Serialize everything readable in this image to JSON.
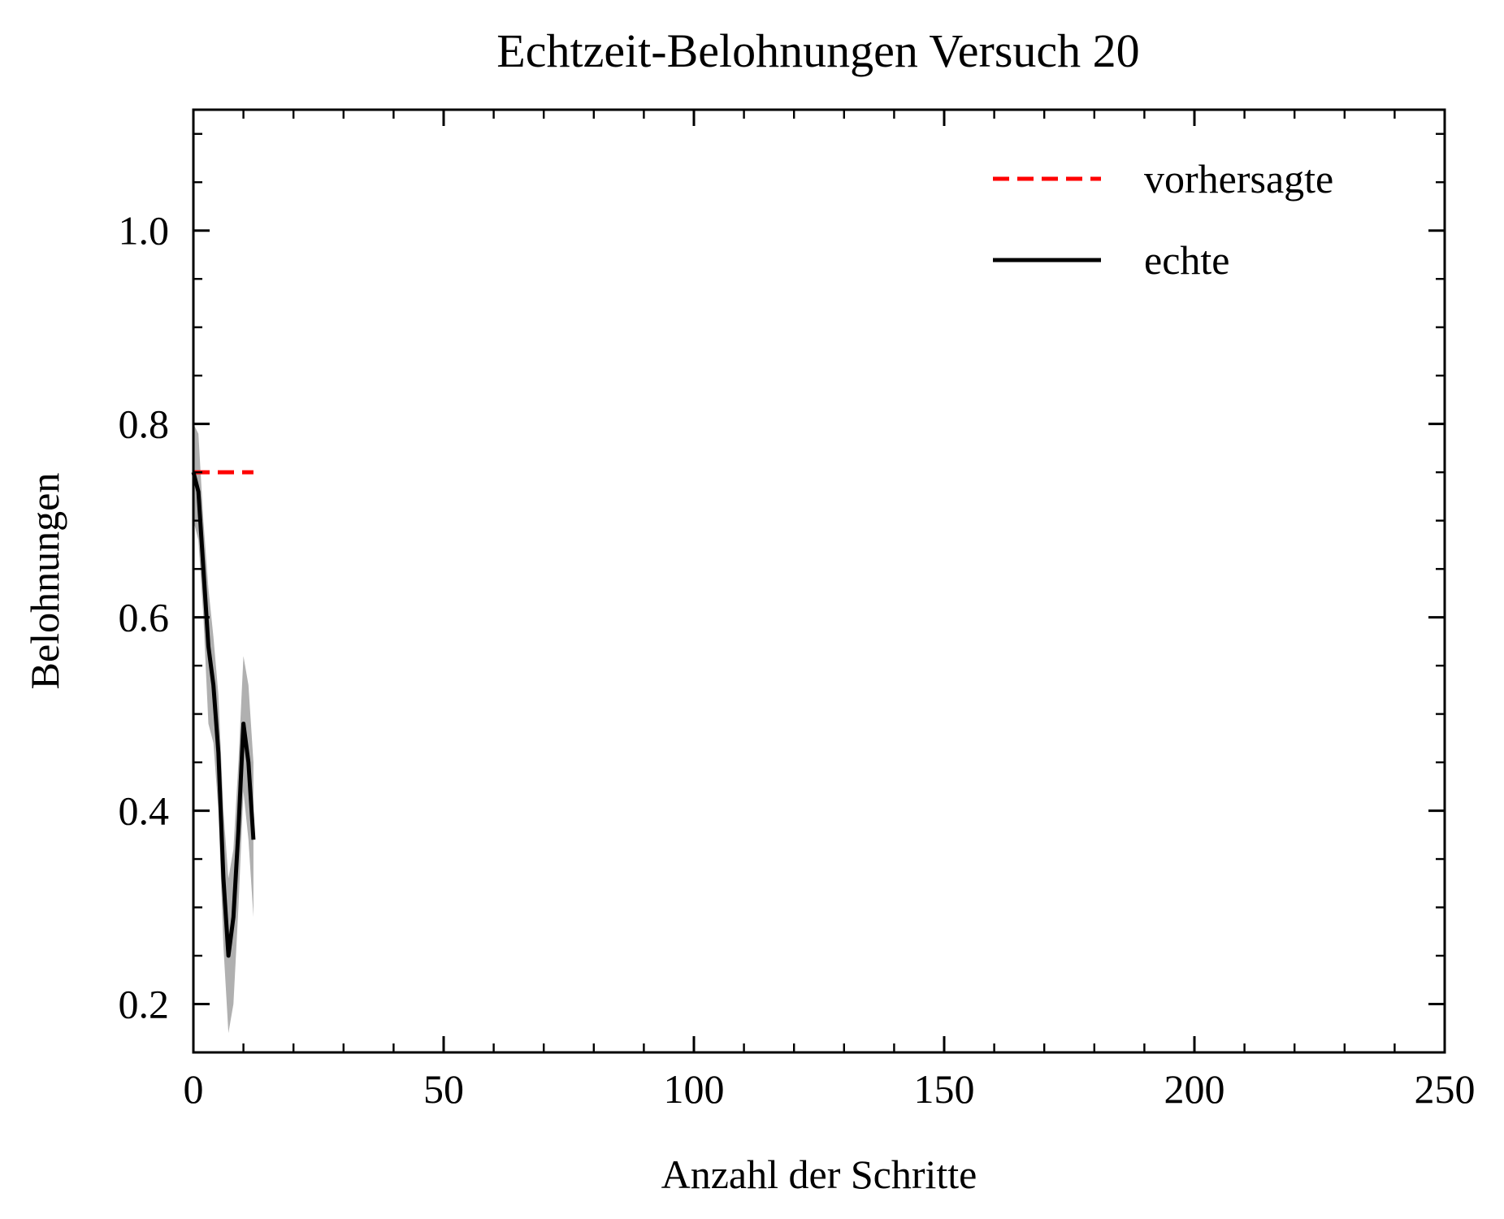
{
  "chart_data": {
    "type": "line",
    "title": "Echtzeit-Belohnungen Versuch 20",
    "xlabel": "Anzahl der Schritte",
    "ylabel": "Belohnungen",
    "xlim": [
      0,
      250
    ],
    "ylim": [
      0.15,
      1.125
    ],
    "x_ticks": [
      0,
      50,
      100,
      150,
      200,
      250
    ],
    "x_tick_labels": [
      "0",
      "50",
      "100",
      "150",
      "200",
      "250"
    ],
    "y_ticks": [
      0.2,
      0.4,
      0.6,
      0.8,
      1.0
    ],
    "y_tick_labels": [
      "0.2",
      "0.4",
      "0.6",
      "0.8",
      "1.0"
    ],
    "grid": false,
    "legend_position": "top-right",
    "series": [
      {
        "name": "vorhersagte",
        "color": "#ff0000",
        "style": "dashed",
        "x": [
          0,
          12
        ],
        "y": [
          0.75,
          0.75
        ]
      },
      {
        "name": "echte",
        "color": "#000000",
        "style": "solid",
        "x": [
          0,
          1,
          2,
          3,
          4,
          5,
          6,
          7,
          8,
          9,
          10,
          11,
          12
        ],
        "y": [
          0.75,
          0.73,
          0.65,
          0.57,
          0.53,
          0.46,
          0.33,
          0.25,
          0.29,
          0.38,
          0.49,
          0.45,
          0.37
        ],
        "band_color": "#b0b0b0",
        "band_lower": [
          0.7,
          0.68,
          0.6,
          0.49,
          0.47,
          0.4,
          0.26,
          0.17,
          0.2,
          0.3,
          0.42,
          0.37,
          0.29
        ],
        "band_upper": [
          0.8,
          0.79,
          0.7,
          0.63,
          0.58,
          0.52,
          0.4,
          0.33,
          0.36,
          0.45,
          0.56,
          0.53,
          0.45
        ]
      }
    ]
  }
}
